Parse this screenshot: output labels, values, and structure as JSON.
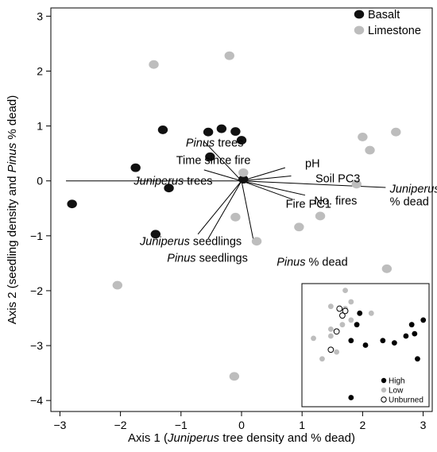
{
  "chart_data": {
    "type": "scatter",
    "title": "",
    "xlabel_prefix": "Axis 1 (",
    "xlabel_italic": "Juniperus",
    "xlabel_suffix": " tree density and % dead)",
    "ylabel_prefix": "Axis 2 (seedling density and ",
    "ylabel_italic": "Pinus",
    "ylabel_suffix": " % dead)",
    "xlim": [
      -3.15,
      3.15
    ],
    "ylim": [
      -4.2,
      3.15
    ],
    "xticks": [
      -3,
      -2,
      -1,
      0,
      1,
      2,
      3
    ],
    "xtick_labels": [
      "−3",
      "−2",
      "−1",
      "0",
      "1",
      "2",
      "3"
    ],
    "yticks": [
      -4,
      -3,
      -2,
      -1,
      0,
      1,
      2,
      3
    ],
    "ytick_labels": [
      "−4",
      "−3",
      "−2",
      "−1",
      "0",
      "1",
      "2",
      "3"
    ],
    "grid": false,
    "legend_position": "top-right",
    "series": [
      {
        "name": "Basalt",
        "color": "#111111",
        "points": [
          [
            -2.8,
            -0.42
          ],
          [
            -1.75,
            0.24
          ],
          [
            -1.42,
            -0.97
          ],
          [
            -1.3,
            0.93
          ],
          [
            -1.2,
            -0.13
          ],
          [
            -0.55,
            0.89
          ],
          [
            -0.52,
            0.44
          ],
          [
            -0.33,
            0.95
          ],
          [
            -0.1,
            0.9
          ],
          [
            0.0,
            0.74
          ],
          [
            0.03,
            0.03
          ]
        ]
      },
      {
        "name": "Limestone",
        "color": "#bdbdbd",
        "points": [
          [
            -1.45,
            2.12
          ],
          [
            -0.2,
            2.28
          ],
          [
            -2.05,
            -1.9
          ],
          [
            -0.1,
            -0.66
          ],
          [
            0.03,
            0.15
          ],
          [
            0.25,
            -1.1
          ],
          [
            0.95,
            -0.84
          ],
          [
            1.3,
            -0.64
          ],
          [
            1.9,
            -0.06
          ],
          [
            2.0,
            0.8
          ],
          [
            2.12,
            0.56
          ],
          [
            2.4,
            -1.6
          ],
          [
            2.55,
            0.89
          ],
          [
            -0.12,
            -3.56
          ]
        ]
      }
    ],
    "vectors": [
      {
        "text_italic": "Pinus",
        "text_rest": " trees",
        "end": [
          -0.62,
          0.72
        ],
        "label_pos": [
          -0.92,
          0.7
        ]
      },
      {
        "text_italic": "",
        "text_rest": "Time since fire",
        "end": [
          -0.62,
          0.2
        ],
        "label_pos": [
          -1.08,
          0.38
        ]
      },
      {
        "text_italic": "Juniperus",
        "text_rest": " trees",
        "end": [
          -2.9,
          0.0
        ],
        "label_pos": [
          -1.78,
          0.0
        ]
      },
      {
        "text_italic": "",
        "text_rest": "pH",
        "end": [
          0.72,
          0.24
        ],
        "label_pos": [
          1.05,
          0.32
        ]
      },
      {
        "text_italic": "",
        "text_rest": "Soil PC3",
        "end": [
          0.82,
          0.09
        ],
        "label_pos": [
          1.22,
          0.05
        ]
      },
      {
        "text_italic": "Juniperus",
        "text_rest": "",
        "end": [
          2.38,
          -0.12
        ],
        "label_pos": [
          2.45,
          -0.14
        ]
      },
      {
        "text_italic": "",
        "text_rest": " % dead",
        "end": null,
        "label_pos": [
          2.45,
          -0.37
        ]
      },
      {
        "text_italic": "",
        "text_rest": "No. fires",
        "end": [
          1.05,
          -0.26
        ],
        "label_pos": [
          1.2,
          -0.36
        ]
      },
      {
        "text_italic": "",
        "text_rest": "Fire PC1",
        "end": [
          0.85,
          -0.34
        ],
        "label_pos": [
          0.73,
          -0.42
        ]
      },
      {
        "text_italic": "Juniperus",
        "text_rest": "  seedlings",
        "end": [
          -0.72,
          -0.97
        ],
        "label_pos": [
          -1.68,
          -1.1
        ]
      },
      {
        "text_italic": "Pinus",
        "text_rest": " seedlings",
        "end": [
          -0.55,
          -1.05
        ],
        "label_pos": [
          -1.23,
          -1.4
        ]
      },
      {
        "text_italic": "Pinus",
        "text_rest": " % dead",
        "end": [
          0.2,
          -1.1
        ],
        "label_pos": [
          0.58,
          -1.47
        ]
      }
    ],
    "inset": {
      "xlim": [
        -1.2,
        3.2
      ],
      "ylim": [
        -3.0,
        2.4
      ],
      "legend": [
        {
          "name": "High",
          "style": "filled",
          "color": "#000000"
        },
        {
          "name": "Low",
          "style": "filled",
          "color": "#bdbdbd"
        },
        {
          "name": "Unburned",
          "style": "hollow",
          "color": "#000000"
        }
      ],
      "groups": {
        "High": [
          [
            0.7,
            0.6
          ],
          [
            0.5,
            -0.1
          ],
          [
            1.0,
            -0.3
          ],
          [
            1.6,
            -0.1
          ],
          [
            2.6,
            0.6
          ],
          [
            2.4,
            0.1
          ],
          [
            2.7,
            0.2
          ],
          [
            3.0,
            0.8
          ],
          [
            2.0,
            -0.2
          ],
          [
            2.8,
            -0.9
          ],
          [
            0.8,
            1.1
          ],
          [
            0.5,
            -2.6
          ]
        ],
        "Low": [
          [
            -0.8,
            0.0
          ],
          [
            0.3,
            2.1
          ],
          [
            0.5,
            0.8
          ],
          [
            -0.2,
            0.4
          ],
          [
            0.5,
            1.6
          ],
          [
            -0.2,
            1.4
          ],
          [
            0.3,
            1.3
          ],
          [
            0.2,
            0.6
          ],
          [
            -0.2,
            0.1
          ],
          [
            0.0,
            -0.6
          ],
          [
            1.2,
            1.1
          ],
          [
            -0.5,
            -0.9
          ]
        ],
        "Unburned": [
          [
            0.1,
            1.3
          ],
          [
            0.2,
            1.0
          ],
          [
            0.0,
            0.3
          ],
          [
            -0.2,
            -0.5
          ],
          [
            0.3,
            1.2
          ]
        ]
      }
    }
  }
}
